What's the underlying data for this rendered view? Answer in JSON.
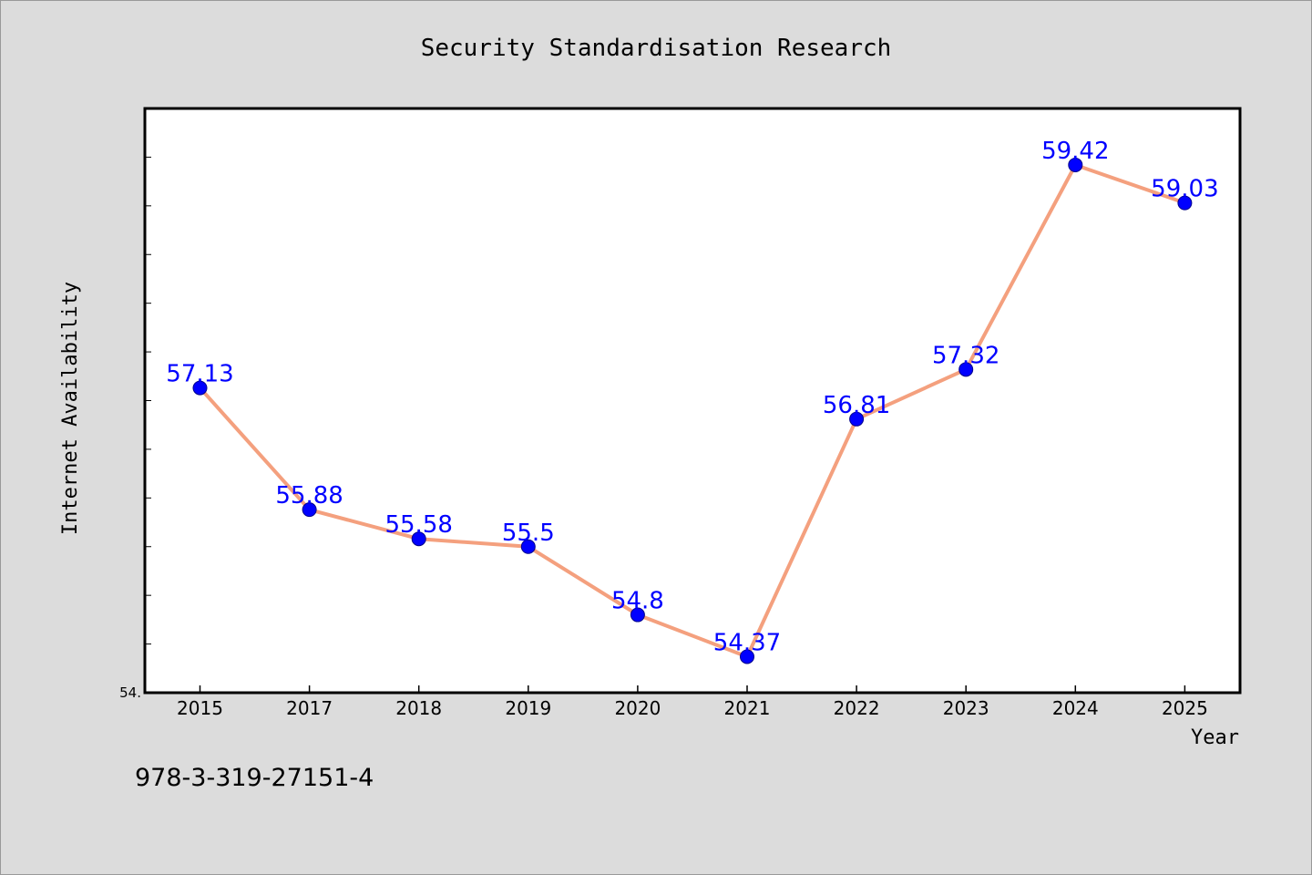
{
  "chart_data": {
    "type": "line",
    "title": "Security Standardisation Research",
    "xlabel": "Year",
    "ylabel": "Internet Availability",
    "categories": [
      "2015",
      "2017",
      "2018",
      "2019",
      "2020",
      "2021",
      "2022",
      "2023",
      "2024",
      "2025"
    ],
    "series": [
      {
        "values": [
          57.13,
          55.88,
          55.58,
          55.5,
          54.8,
          54.37,
          56.81,
          57.32,
          59.42,
          59.03
        ],
        "labels": [
          "57.13",
          "55.88",
          "55.58",
          "55.5",
          "54.8",
          "54.37",
          "56.81",
          "57.32",
          "59.42",
          "59.03"
        ],
        "line_color": "#f4a07e",
        "marker_color": "#0000ff"
      }
    ],
    "ylim": [
      54.0,
      60.0
    ],
    "y_minor_tick_step": 0.5,
    "y_tick_labels": [
      {
        "value": 54.0,
        "label": "54."
      }
    ],
    "grid": false,
    "legend": "none"
  },
  "footer": {
    "text": "978-3-319-27151-4"
  }
}
